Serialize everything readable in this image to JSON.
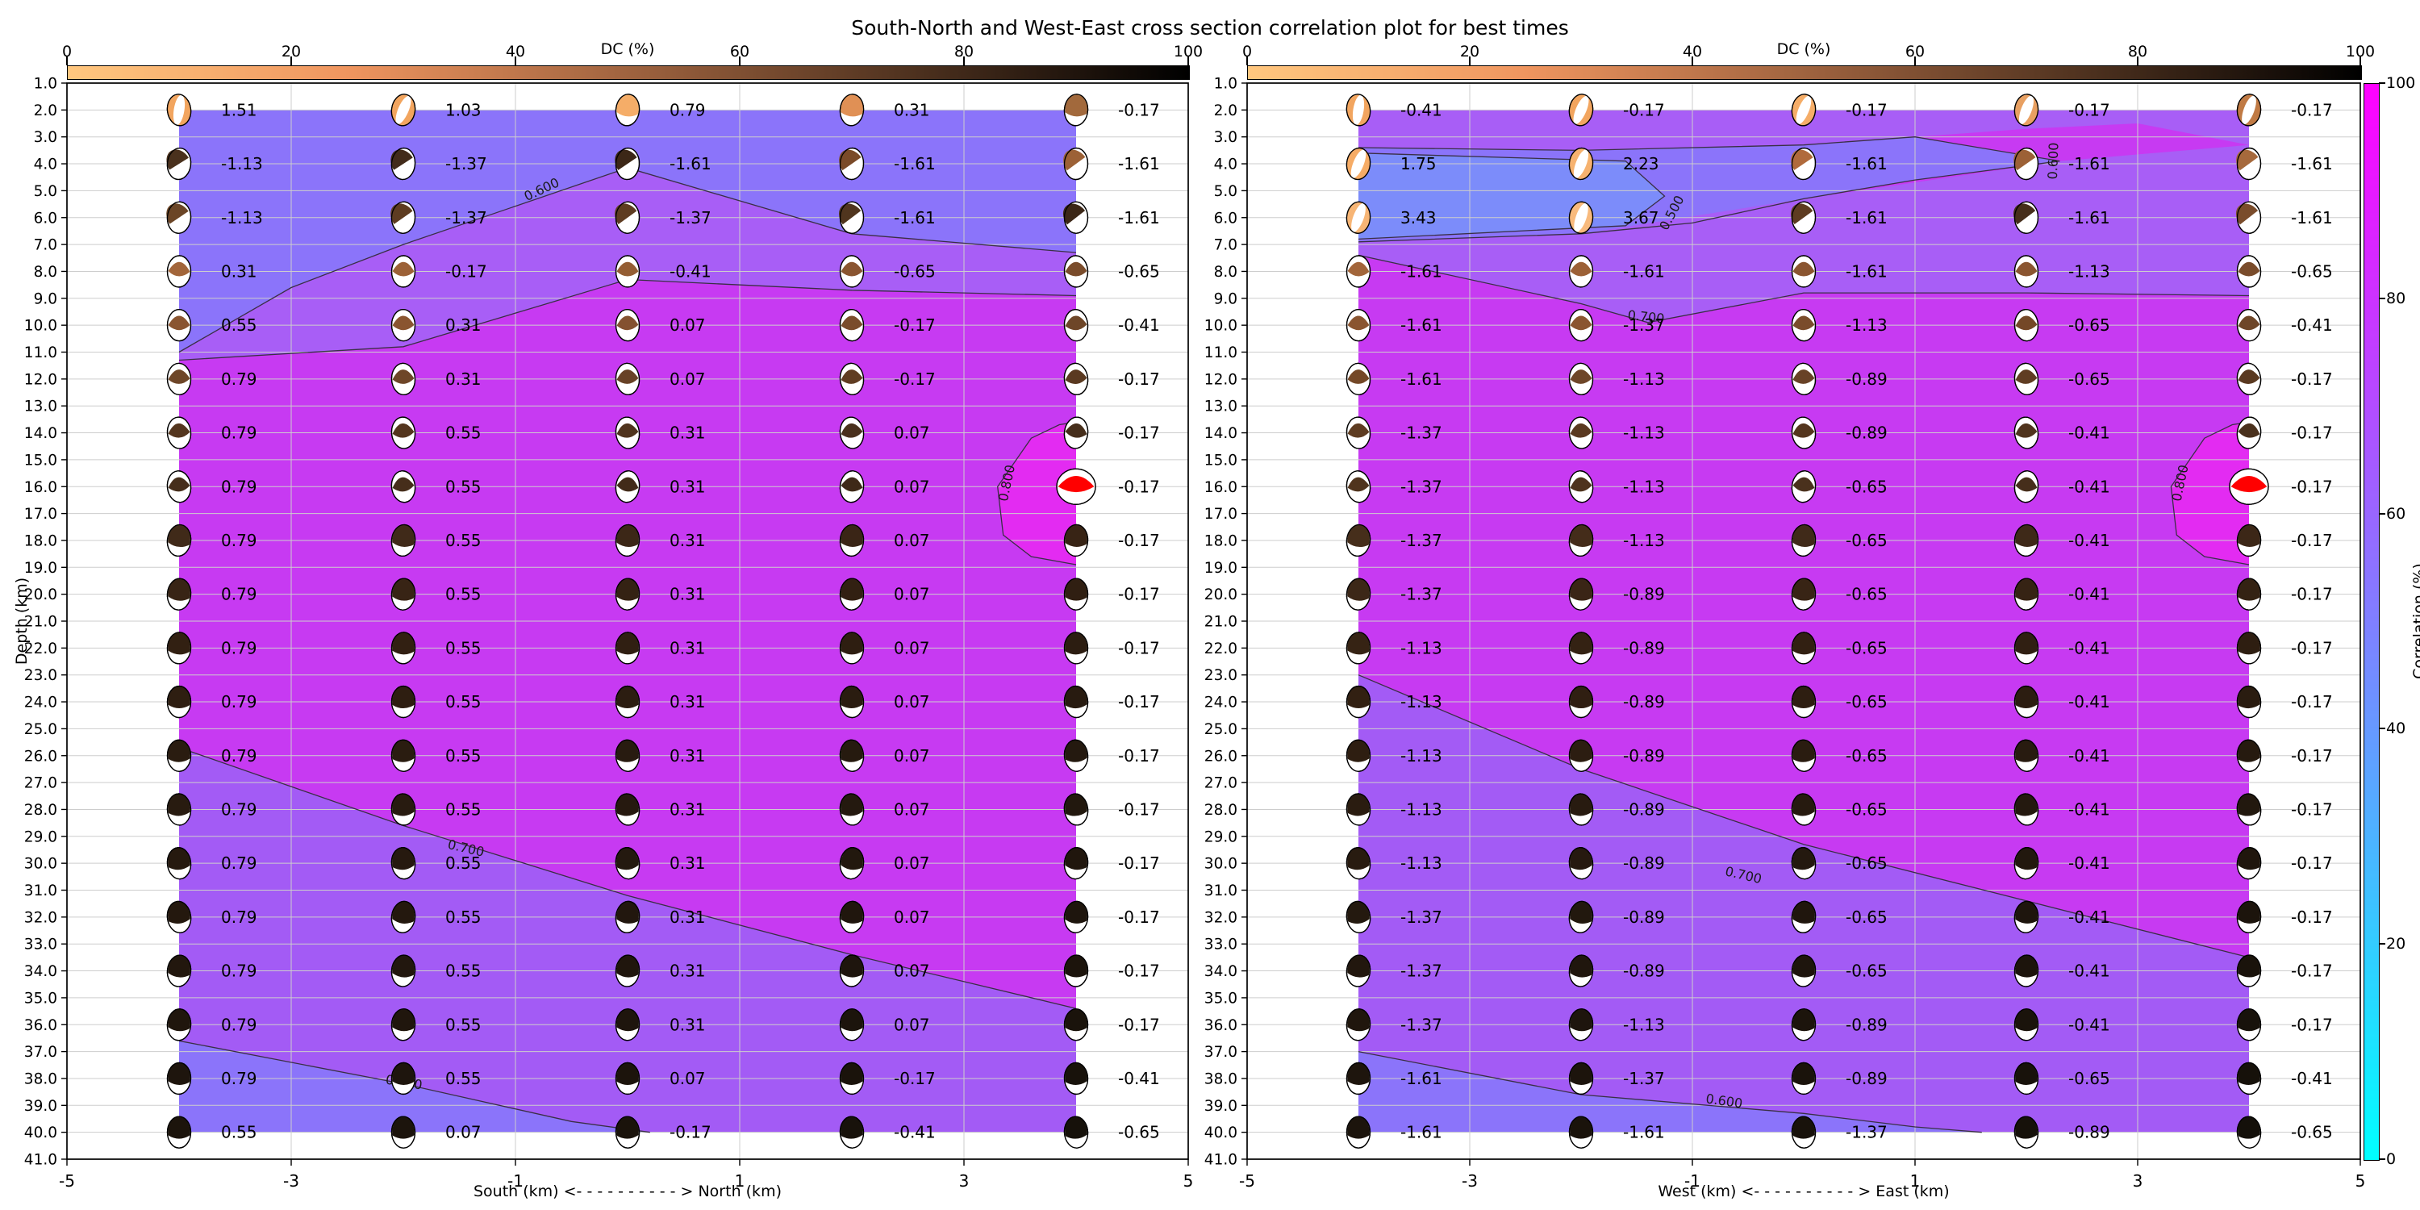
{
  "chart_data": {
    "type": "heatmap",
    "title": "South-North and West-East cross section correlation plot for best times",
    "colorbar_top": {
      "label": "DC (%)",
      "ticks": [
        0,
        20,
        40,
        60,
        80,
        100
      ],
      "colors": [
        "#ffc77f",
        "#9f633f",
        "#000000"
      ]
    },
    "colorbar_right": {
      "label": "Correlation (%)",
      "ticks": [
        0,
        20,
        40,
        60,
        80,
        100
      ],
      "colors_top_to_bottom": [
        "#ff00ff",
        "#00ffff"
      ]
    },
    "y_axis": {
      "label": "Depth (km)",
      "tick_min": 1.0,
      "tick_max": 41.0,
      "tick_step": 1.0
    },
    "depths": [
      2,
      4,
      6,
      8,
      10,
      12,
      14,
      16,
      18,
      20,
      22,
      24,
      26,
      28,
      30,
      32,
      34,
      36,
      38,
      40
    ],
    "fill_band_colors": {
      "magenta": "#c73af2",
      "purple": "#a85ef6",
      "purple2": "#a35bf5",
      "blueviolet": "#8b74fa",
      "brightblue": "#7c8cfa",
      "brightspot": "#e32bf2"
    },
    "panels": [
      {
        "name": "south-north",
        "xlabel": "South (km) <- - - - - - - - - - > North (km)",
        "x_ticks": [
          -5,
          -3,
          -1,
          1,
          3,
          5
        ],
        "ball_x": [
          -4,
          -2,
          0,
          2,
          4
        ],
        "values": [
          [
            1.51,
            1.03,
            0.79,
            0.31,
            -0.17
          ],
          [
            -1.13,
            -1.37,
            -1.61,
            -1.61,
            -1.61
          ],
          [
            -1.13,
            -1.37,
            -1.37,
            -1.61,
            -1.61
          ],
          [
            0.31,
            -0.17,
            -0.41,
            -0.65,
            -0.65
          ],
          [
            0.55,
            0.31,
            0.07,
            -0.17,
            -0.41
          ],
          [
            0.79,
            0.31,
            0.07,
            -0.17,
            -0.17
          ],
          [
            0.79,
            0.55,
            0.31,
            0.07,
            -0.17
          ],
          [
            0.79,
            0.55,
            0.31,
            0.07,
            -0.17
          ],
          [
            0.79,
            0.55,
            0.31,
            0.07,
            -0.17
          ],
          [
            0.79,
            0.55,
            0.31,
            0.07,
            -0.17
          ],
          [
            0.79,
            0.55,
            0.31,
            0.07,
            -0.17
          ],
          [
            0.79,
            0.55,
            0.31,
            0.07,
            -0.17
          ],
          [
            0.79,
            0.55,
            0.31,
            0.07,
            -0.17
          ],
          [
            0.79,
            0.55,
            0.31,
            0.07,
            -0.17
          ],
          [
            0.79,
            0.55,
            0.31,
            0.07,
            -0.17
          ],
          [
            0.79,
            0.55,
            0.31,
            0.07,
            -0.17
          ],
          [
            0.79,
            0.55,
            0.31,
            0.07,
            -0.17
          ],
          [
            0.79,
            0.55,
            0.31,
            0.07,
            -0.17
          ],
          [
            0.79,
            0.55,
            0.07,
            -0.17,
            -0.41
          ],
          [
            0.55,
            0.07,
            -0.17,
            -0.41,
            -0.65
          ]
        ],
        "ball_styles": [
          "ssmmm",
          "ddddd",
          "ddddd",
          "lllll",
          "lllll",
          "lllll",
          "lllll",
          "lllll",
          "mmmmm",
          "mmmmm",
          "mmmmm",
          "mmmmm",
          "mmmmm",
          "mmmmm",
          "mmmmm",
          "mmmmm",
          "mmmmm",
          "mmmmm",
          "mmmmm",
          "mmmmm"
        ],
        "ball_colors": [
          [
            "#f2a55f",
            "#f2a55f",
            "#f5ad68",
            "#e09055",
            "#a2693c"
          ],
          [
            "#4a311d",
            "#422b1a",
            "#3c2717",
            "#7a4a28",
            "#9c6136"
          ],
          [
            "#6b4526",
            "#5e3c21",
            "#5e3c21",
            "#50351e",
            "#3c2717"
          ],
          [
            "#a2653a",
            "#9c6136",
            "#945d33",
            "#8a5530",
            "#7a4c2b"
          ],
          [
            "#8a5530",
            "#8a5530",
            "#845130",
            "#7a4c2b",
            "#6e4628"
          ],
          [
            "#6e4628",
            "#6e4628",
            "#684226",
            "#603d22",
            "#5a3920"
          ],
          [
            "#54361e",
            "#54361e",
            "#50341d",
            "#4a311d",
            "#462e1b"
          ],
          [
            "#462e1b",
            "#462e1b",
            "#422b19",
            "#3e2918",
            "#ff0000"
          ],
          [
            "#402a19",
            "#402a19",
            "#3c2717",
            "#3a2516",
            "#382415"
          ],
          [
            "#382415",
            "#382415",
            "#342213",
            "#322012",
            "#301f12"
          ],
          [
            "#322012",
            "#322012",
            "#301f12",
            "#2e1e11",
            "#2c1d11"
          ],
          [
            "#2e1e11",
            "#2e1e11",
            "#2c1d11",
            "#2a1c10",
            "#281b10"
          ],
          [
            "#2a1c10",
            "#2a1c10",
            "#281b10",
            "#261a0f",
            "#24190f"
          ],
          [
            "#281b10",
            "#281b10",
            "#26190f",
            "#24190f",
            "#22180e"
          ],
          [
            "#26190f",
            "#26190f",
            "#24190f",
            "#22180e",
            "#20160d"
          ],
          [
            "#24180e",
            "#24180e",
            "#22170e",
            "#20160d",
            "#1e150d"
          ],
          [
            "#22170e",
            "#22170e",
            "#20160d",
            "#1e150d",
            "#1c140c"
          ],
          [
            "#20160d",
            "#20160d",
            "#1e150d",
            "#1c140c",
            "#1a130b"
          ],
          [
            "#1e150d",
            "#1e150d",
            "#1c140c",
            "#1a130b",
            "#18120b"
          ],
          [
            "#1c140c",
            "#1c140c",
            "#1a130b",
            "#18120b",
            "#16110a"
          ]
        ],
        "highlight": {
          "depth": 16.0,
          "col_index": 4,
          "color": "#ff0000"
        },
        "contour_labels": [
          {
            "text": "0.600",
            "km": -0.75,
            "depth": 5.1,
            "rot": -25
          },
          {
            "text": "0.800",
            "km": 3.42,
            "depth": 15.9,
            "rot": -78
          },
          {
            "text": "0.700",
            "km": -1.45,
            "depth": 29.6,
            "rot": 13
          },
          {
            "text": "0.600",
            "km": -2.0,
            "depth": 38.3,
            "rot": 9
          }
        ]
      },
      {
        "name": "west-east",
        "xlabel": "West (km) <- - - - - - - - - - > East (km)",
        "x_ticks": [
          -5,
          -3,
          -1,
          1,
          3,
          5
        ],
        "ball_x": [
          -4,
          -2,
          0,
          2,
          4
        ],
        "values": [
          [
            -0.41,
            -0.17,
            -0.17,
            -0.17,
            -0.17
          ],
          [
            1.75,
            2.23,
            -1.61,
            -1.61,
            -1.61
          ],
          [
            3.43,
            3.67,
            -1.61,
            -1.61,
            -1.61
          ],
          [
            -1.61,
            -1.61,
            -1.61,
            -1.13,
            -0.65
          ],
          [
            -1.61,
            -1.37,
            -1.13,
            -0.65,
            -0.41
          ],
          [
            -1.61,
            -1.13,
            -0.89,
            -0.65,
            -0.17
          ],
          [
            -1.37,
            -1.13,
            -0.89,
            -0.41,
            -0.17
          ],
          [
            -1.37,
            -1.13,
            -0.65,
            -0.41,
            -0.17
          ],
          [
            -1.37,
            -1.13,
            -0.65,
            -0.41,
            -0.17
          ],
          [
            -1.37,
            -0.89,
            -0.65,
            -0.41,
            -0.17
          ],
          [
            -1.13,
            -0.89,
            -0.65,
            -0.41,
            -0.17
          ],
          [
            -1.13,
            -0.89,
            -0.65,
            -0.41,
            -0.17
          ],
          [
            -1.13,
            -0.89,
            -0.65,
            -0.41,
            -0.17
          ],
          [
            -1.13,
            -0.89,
            -0.65,
            -0.41,
            -0.17
          ],
          [
            -1.13,
            -0.89,
            -0.65,
            -0.41,
            -0.17
          ],
          [
            -1.37,
            -0.89,
            -0.65,
            -0.41,
            -0.17
          ],
          [
            -1.37,
            -0.89,
            -0.65,
            -0.41,
            -0.17
          ],
          [
            -1.37,
            -1.13,
            -0.89,
            -0.41,
            -0.17
          ],
          [
            -1.61,
            -1.37,
            -0.89,
            -0.65,
            -0.41
          ],
          [
            -1.61,
            -1.61,
            -1.37,
            -0.89,
            -0.65
          ]
        ],
        "ball_styles": [
          "sssss",
          "ssddd",
          "ssddd",
          "lllll",
          "lllll",
          "lllll",
          "lllll",
          "lllll",
          "mmmmm",
          "mmmmm",
          "mmmmm",
          "mmmmm",
          "mmmmm",
          "mmmmm",
          "mmmmm",
          "mmmmm",
          "mmmmm",
          "mmmmm",
          "mmmmm",
          "mmmmm"
        ],
        "ball_colors": [
          [
            "#f2a55f",
            "#f2a55f",
            "#f5ad68",
            "#e8a062",
            "#c07a44"
          ],
          [
            "#f6ac66",
            "#f6b26f",
            "#b06a3c",
            "#9c6136",
            "#a6693c"
          ],
          [
            "#f7b575",
            "#f8ba7d",
            "#5e3c21",
            "#462e1b",
            "#7a4c2b"
          ],
          [
            "#a2653a",
            "#9c6136",
            "#8a5530",
            "#8a5530",
            "#7a4c2b"
          ],
          [
            "#8a5530",
            "#8a5530",
            "#7a4c2b",
            "#744827",
            "#6e4628"
          ],
          [
            "#744827",
            "#6e4628",
            "#684226",
            "#603d22",
            "#5a3920"
          ],
          [
            "#5e3c21",
            "#5a3920",
            "#54361e",
            "#50341d",
            "#4a311d"
          ],
          [
            "#50341d",
            "#4e331d",
            "#4a311d",
            "#462e1b",
            "#ff0000"
          ],
          [
            "#462e1b",
            "#442c1a",
            "#402a19",
            "#3e2918",
            "#3c2717"
          ],
          [
            "#3c2717",
            "#3a2516",
            "#382415",
            "#362314",
            "#342213"
          ],
          [
            "#362314",
            "#342213",
            "#322012",
            "#301f12",
            "#2e1e11"
          ],
          [
            "#322012",
            "#301f12",
            "#2e1e11",
            "#2c1d11",
            "#2a1c10"
          ],
          [
            "#2e1e11",
            "#2c1d11",
            "#2a1c10",
            "#281b10",
            "#261a0f"
          ],
          [
            "#2a1c10",
            "#281b10",
            "#261a0f",
            "#24190f",
            "#22180e"
          ],
          [
            "#281b10",
            "#26190f",
            "#24190f",
            "#22180e",
            "#20160d"
          ],
          [
            "#24190f",
            "#22180e",
            "#20160d",
            "#1e150d",
            "#1c140c"
          ],
          [
            "#22170e",
            "#20160d",
            "#1e150d",
            "#1c140c",
            "#1a130b"
          ],
          [
            "#20160d",
            "#1e150d",
            "#1c140c",
            "#1a130b",
            "#18120b"
          ],
          [
            "#1e150d",
            "#1c140c",
            "#1a130b",
            "#18120b",
            "#16110a"
          ],
          [
            "#1c140c",
            "#1a130b",
            "#18120b",
            "#16110a",
            "#14100a"
          ]
        ],
        "highlight": {
          "depth": 16.0,
          "col_index": 4,
          "color": "#ff0000"
        },
        "contour_labels": [
          {
            "text": "0.500",
            "km": -1.15,
            "depth": 5.9,
            "rot": -62
          },
          {
            "text": "0.600",
            "km": 2.28,
            "depth": 3.9,
            "rot": -88
          },
          {
            "text": "0.700",
            "km": -1.42,
            "depth": 9.85,
            "rot": 6
          },
          {
            "text": "0.700",
            "km": -0.55,
            "depth": 30.6,
            "rot": 13
          },
          {
            "text": "0.600",
            "km": -0.72,
            "depth": 39.0,
            "rot": 8
          },
          {
            "text": "0.800",
            "km": 3.42,
            "depth": 15.9,
            "rot": -78
          }
        ]
      }
    ]
  }
}
